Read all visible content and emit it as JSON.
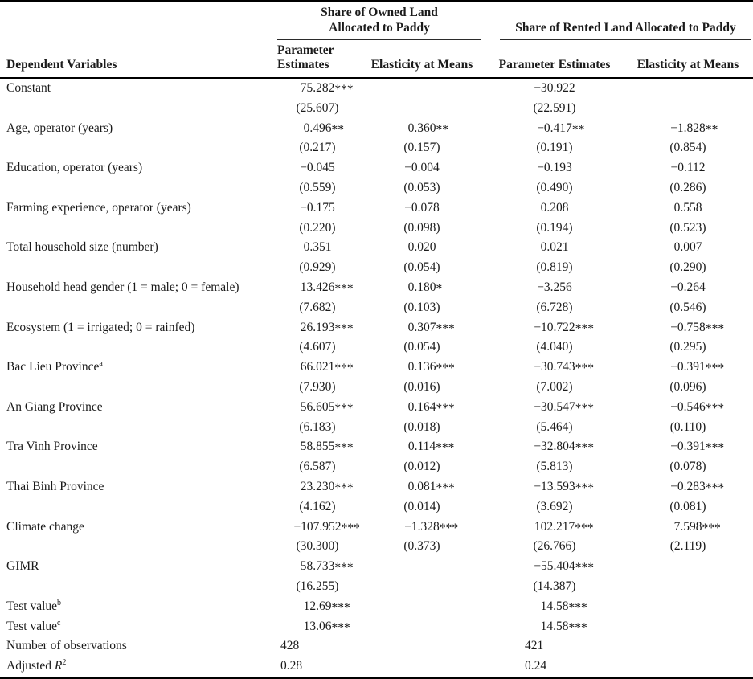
{
  "header": {
    "col1": "Dependent Variables",
    "group1": "Share of Owned Land\nAllocated to Paddy",
    "group2": "Share of Rented Land Allocated to Paddy",
    "col2": "Parameter\nEstimates",
    "col3": "Elasticity at Means",
    "col4": "Parameter Estimates",
    "col5": "Elasticity at Means"
  },
  "colors": {
    "text": "#1b1b1b",
    "rule_heavy": "#000000",
    "rule_light": "#2b2b2b",
    "background": "#ffffff"
  },
  "table": {
    "rows": [
      {
        "type": "est",
        "label": "Constant",
        "cells": [
          "75.282***",
          "",
          "−30.922",
          ""
        ]
      },
      {
        "type": "se",
        "label": "",
        "cells": [
          "(25.607)",
          "",
          "(22.591)",
          ""
        ]
      },
      {
        "type": "est",
        "label": "Age, operator (years)",
        "cells": [
          "0.496**",
          "0.360**",
          "−0.417**",
          "−1.828**"
        ]
      },
      {
        "type": "se",
        "label": "",
        "cells": [
          "(0.217)",
          "(0.157)",
          "(0.191)",
          "(0.854)"
        ]
      },
      {
        "type": "est",
        "label": "Education, operator (years)",
        "cells": [
          "−0.045",
          "−0.004",
          "−0.193",
          "−0.112"
        ]
      },
      {
        "type": "se",
        "label": "",
        "cells": [
          "(0.559)",
          "(0.053)",
          "(0.490)",
          "(0.286)"
        ]
      },
      {
        "type": "est",
        "label": "Farming experience, operator (years)",
        "cells": [
          "−0.175",
          "−0.078",
          "0.208",
          "0.558"
        ]
      },
      {
        "type": "se",
        "label": "",
        "cells": [
          "(0.220)",
          "(0.098)",
          "(0.194)",
          "(0.523)"
        ]
      },
      {
        "type": "est",
        "label": "Total household size (number)",
        "cells": [
          "0.351",
          "0.020",
          "0.021",
          "0.007"
        ]
      },
      {
        "type": "se",
        "label": "",
        "cells": [
          "(0.929)",
          "(0.054)",
          "(0.819)",
          "(0.290)"
        ]
      },
      {
        "type": "est",
        "label": "Household head gender (1 = male; 0 = female)",
        "cells": [
          "13.426***",
          "0.180*",
          "−3.256",
          "−0.264"
        ]
      },
      {
        "type": "se",
        "label": "",
        "cells": [
          "(7.682)",
          "(0.103)",
          "(6.728)",
          "(0.546)"
        ]
      },
      {
        "type": "est",
        "label": "Ecosystem (1 = irrigated; 0 = rainfed)",
        "cells": [
          "26.193***",
          "0.307***",
          "−10.722***",
          "−0.758***"
        ]
      },
      {
        "type": "se",
        "label": "",
        "cells": [
          "(4.607)",
          "(0.054)",
          "(4.040)",
          "(0.295)"
        ]
      },
      {
        "type": "est",
        "label": "Bac Lieu Province",
        "sup": "a",
        "cells": [
          "66.021***",
          "0.136***",
          "−30.743***",
          "−0.391***"
        ]
      },
      {
        "type": "se",
        "label": "",
        "cells": [
          "(7.930)",
          "(0.016)",
          "(7.002)",
          "(0.096)"
        ]
      },
      {
        "type": "est",
        "label": "An Giang Province",
        "cells": [
          "56.605***",
          "0.164***",
          "−30.547***",
          "−0.546***"
        ]
      },
      {
        "type": "se",
        "label": "",
        "cells": [
          "(6.183)",
          "(0.018)",
          "(5.464)",
          "(0.110)"
        ]
      },
      {
        "type": "est",
        "label": "Tra Vinh Province",
        "cells": [
          "58.855***",
          "0.114***",
          "−32.804***",
          "−0.391***"
        ]
      },
      {
        "type": "se",
        "label": "",
        "cells": [
          "(6.587)",
          "(0.012)",
          "(5.813)",
          "(0.078)"
        ]
      },
      {
        "type": "est",
        "label": "Thai Binh Province",
        "cells": [
          "23.230***",
          "0.081***",
          "−13.593***",
          "−0.283***"
        ]
      },
      {
        "type": "se",
        "label": "",
        "cells": [
          "(4.162)",
          "(0.014)",
          "(3.692)",
          "(0.081)"
        ]
      },
      {
        "type": "est",
        "label": "Climate change",
        "cells": [
          "−107.952***",
          "−1.328***",
          "102.217***",
          "7.598***"
        ]
      },
      {
        "type": "se",
        "label": "",
        "cells": [
          "(30.300)",
          "(0.373)",
          "(26.766)",
          "(2.119)"
        ]
      },
      {
        "type": "est",
        "label": "GIMR",
        "cells": [
          "58.733***",
          "",
          "−55.404***",
          ""
        ]
      },
      {
        "type": "se",
        "label": "",
        "cells": [
          "(16.255)",
          "",
          "(14.387)",
          ""
        ]
      },
      {
        "type": "single",
        "label": "Test value",
        "sup": "b",
        "cells": [
          "12.69***",
          "",
          "14.58***",
          ""
        ]
      },
      {
        "type": "single",
        "label": "Test value",
        "sup": "c",
        "cells": [
          "13.06***",
          "",
          "14.58***",
          ""
        ]
      },
      {
        "type": "stat",
        "label": "Number of observations",
        "cells": [
          "428",
          "",
          "421",
          ""
        ]
      },
      {
        "type": "stat",
        "label": "Adjusted ",
        "math": "R",
        "sup": "2",
        "cells": [
          "0.28",
          "",
          "0.24",
          ""
        ]
      }
    ]
  }
}
